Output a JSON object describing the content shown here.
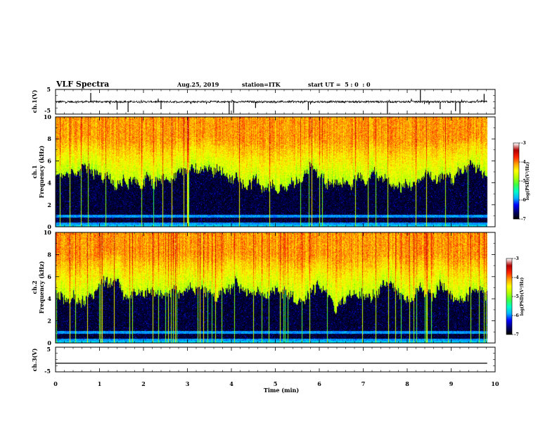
{
  "header": {
    "title": "VLF Spectra",
    "date": "Aug.25, 2019",
    "station": "station=ITK",
    "start_ut": "start UT =  5 : 0  : 0"
  },
  "chart_data": [
    {
      "type": "line",
      "name": "ch.1 waveform",
      "ylabel": "ch.1(V)",
      "ylim": [
        -5,
        5
      ],
      "yticks": [
        "5",
        "-5"
      ],
      "xlim": [
        0,
        10
      ],
      "baseline": 0,
      "noise_amplitude": 0.4,
      "spikes": [
        {
          "x": 0.8,
          "y": 3.6
        },
        {
          "x": 1.4,
          "y": -3.2
        },
        {
          "x": 1.65,
          "y": -4.2
        },
        {
          "x": 2.4,
          "y": -3.0
        },
        {
          "x": 3.95,
          "y": -5.0
        },
        {
          "x": 4.05,
          "y": -4.6
        },
        {
          "x": 4.55,
          "y": -2.5
        },
        {
          "x": 5.75,
          "y": -3.4
        },
        {
          "x": 7.55,
          "y": -4.8
        },
        {
          "x": 8.3,
          "y": 4.8
        },
        {
          "x": 8.75,
          "y": -3.0
        },
        {
          "x": 9.1,
          "y": -3.8
        },
        {
          "x": 9.2,
          "y": -4.6
        },
        {
          "x": 9.75,
          "y": 3.2
        }
      ]
    },
    {
      "type": "heatmap",
      "name": "ch.1 spectrogram",
      "ylabel": "ch.1\nFrequency (kHz)",
      "ylim": [
        0,
        10
      ],
      "yticks": [
        0,
        2,
        4,
        6,
        8,
        10
      ],
      "xlim": [
        0,
        10
      ],
      "colorbar": {
        "label": "log(PSD)(V²/Hz)",
        "ticks": [
          -3,
          -4,
          -5,
          -6,
          -7
        ],
        "range": [
          -7,
          -3
        ]
      },
      "bands_khz": [
        0.3,
        1.0
      ],
      "quiet_ceiling_khz": 4.6
    },
    {
      "type": "heatmap",
      "name": "ch.2 spectrogram",
      "ylabel": "ch.2\nFrequency (kHz)",
      "ylim": [
        0,
        10
      ],
      "yticks": [
        0,
        2,
        4,
        6,
        8,
        10
      ],
      "xlim": [
        0,
        10
      ],
      "colorbar": {
        "label": "log(PSD)(V²/Hz)",
        "ticks": [
          -3,
          -4,
          -5,
          -6,
          -7
        ],
        "range": [
          -7,
          -3
        ]
      },
      "bands_khz": [
        0.3,
        1.0
      ],
      "quiet_ceiling_khz": 4.6
    },
    {
      "type": "line",
      "name": "ch.3 waveform",
      "ylabel": "ch.3(V)",
      "ylim": [
        -5,
        5
      ],
      "yticks": [
        "5",
        "-5"
      ],
      "xlim": [
        0,
        10
      ],
      "baseline": -1.5
    }
  ],
  "x_axis": {
    "label": "Time (min)",
    "ticks": [
      "0",
      "1",
      "2",
      "3",
      "4",
      "5",
      "6",
      "7",
      "8",
      "9",
      "10"
    ],
    "data_end_min": 9.82
  },
  "colormap": [
    "#000000",
    "#000070",
    "#0000ff",
    "#00b4ff",
    "#00ffc8",
    "#40ff40",
    "#b4ff00",
    "#ffff00",
    "#ffa000",
    "#ff2000",
    "#b00000",
    "#ffffff"
  ]
}
